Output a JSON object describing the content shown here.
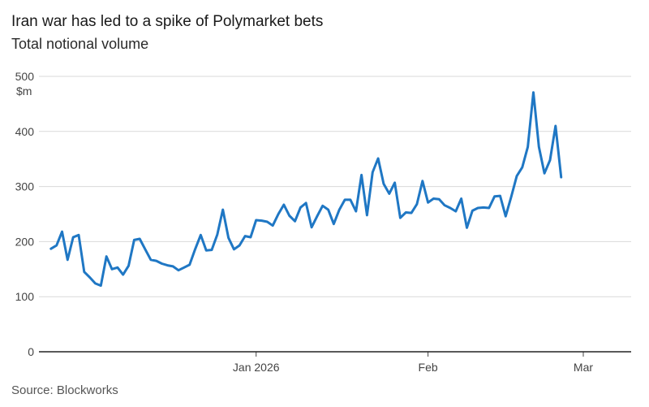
{
  "chart_data": {
    "type": "line",
    "title": "Iran war has led to a spike of Polymarket bets",
    "subtitle": "Total notional volume",
    "ylabel": "$m",
    "source": "Source: Blockworks",
    "ylim": [
      0,
      500
    ],
    "yticks": [
      0,
      100,
      200,
      300,
      400,
      500
    ],
    "xlim": [
      "2025-11-24",
      "2026-03-07"
    ],
    "xticks": [
      {
        "date": "2026-01-01",
        "label": "Jan 2026"
      },
      {
        "date": "2026-02-01",
        "label": "Feb"
      },
      {
        "date": "2026-03-01",
        "label": "Mar"
      }
    ],
    "grid": "horizontal",
    "color": "#1f77c4",
    "series": [
      {
        "points": [
          [
            "2025-11-25",
            187
          ],
          [
            "2025-11-26",
            193
          ],
          [
            "2025-11-27",
            218
          ],
          [
            "2025-11-28",
            167
          ],
          [
            "2025-11-29",
            208
          ],
          [
            "2025-11-30",
            212
          ],
          [
            "2025-12-01",
            145
          ],
          [
            "2025-12-02",
            135
          ],
          [
            "2025-12-03",
            124
          ],
          [
            "2025-12-04",
            120
          ],
          [
            "2025-12-05",
            173
          ],
          [
            "2025-12-06",
            150
          ],
          [
            "2025-12-07",
            153
          ],
          [
            "2025-12-08",
            140
          ],
          [
            "2025-12-09",
            156
          ],
          [
            "2025-12-10",
            203
          ],
          [
            "2025-12-11",
            205
          ],
          [
            "2025-12-12",
            186
          ],
          [
            "2025-12-13",
            167
          ],
          [
            "2025-12-14",
            165
          ],
          [
            "2025-12-15",
            160
          ],
          [
            "2025-12-16",
            157
          ],
          [
            "2025-12-17",
            155
          ],
          [
            "2025-12-18",
            148
          ],
          [
            "2025-12-19",
            153
          ],
          [
            "2025-12-20",
            158
          ],
          [
            "2025-12-21",
            186
          ],
          [
            "2025-12-22",
            212
          ],
          [
            "2025-12-23",
            184
          ],
          [
            "2025-12-24",
            185
          ],
          [
            "2025-12-25",
            213
          ],
          [
            "2025-12-26",
            258
          ],
          [
            "2025-12-27",
            207
          ],
          [
            "2025-12-28",
            186
          ],
          [
            "2025-12-29",
            193
          ],
          [
            "2025-12-30",
            210
          ],
          [
            "2025-12-31",
            208
          ],
          [
            "2026-01-01",
            239
          ],
          [
            "2026-01-02",
            238
          ],
          [
            "2026-01-03",
            236
          ],
          [
            "2026-01-04",
            229
          ],
          [
            "2026-01-05",
            250
          ],
          [
            "2026-01-06",
            267
          ],
          [
            "2026-01-07",
            247
          ],
          [
            "2026-01-08",
            237
          ],
          [
            "2026-01-09",
            262
          ],
          [
            "2026-01-10",
            270
          ],
          [
            "2026-01-11",
            226
          ],
          [
            "2026-01-12",
            246
          ],
          [
            "2026-01-13",
            265
          ],
          [
            "2026-01-14",
            258
          ],
          [
            "2026-01-15",
            232
          ],
          [
            "2026-01-16",
            258
          ],
          [
            "2026-01-17",
            276
          ],
          [
            "2026-01-18",
            276
          ],
          [
            "2026-01-19",
            255
          ],
          [
            "2026-01-20",
            321
          ],
          [
            "2026-01-21",
            248
          ],
          [
            "2026-01-22",
            326
          ],
          [
            "2026-01-23",
            351
          ],
          [
            "2026-01-24",
            305
          ],
          [
            "2026-01-25",
            287
          ],
          [
            "2026-01-26",
            307
          ],
          [
            "2026-01-27",
            243
          ],
          [
            "2026-01-28",
            253
          ],
          [
            "2026-01-29",
            252
          ],
          [
            "2026-01-30",
            268
          ],
          [
            "2026-01-31",
            310
          ],
          [
            "2026-02-01",
            271
          ],
          [
            "2026-02-02",
            278
          ],
          [
            "2026-02-03",
            277
          ],
          [
            "2026-02-04",
            266
          ],
          [
            "2026-02-05",
            261
          ],
          [
            "2026-02-06",
            255
          ],
          [
            "2026-02-07",
            278
          ],
          [
            "2026-02-08",
            225
          ],
          [
            "2026-02-09",
            256
          ],
          [
            "2026-02-10",
            261
          ],
          [
            "2026-02-11",
            262
          ],
          [
            "2026-02-12",
            261
          ],
          [
            "2026-02-13",
            282
          ],
          [
            "2026-02-14",
            283
          ],
          [
            "2026-02-15",
            246
          ],
          [
            "2026-02-16",
            281
          ],
          [
            "2026-02-17",
            319
          ],
          [
            "2026-02-18",
            335
          ],
          [
            "2026-02-19",
            372
          ],
          [
            "2026-02-20",
            471
          ],
          [
            "2026-02-21",
            372
          ],
          [
            "2026-02-22",
            324
          ],
          [
            "2026-02-23",
            348
          ],
          [
            "2026-02-24",
            410
          ],
          [
            "2026-02-25",
            317
          ]
        ]
      }
    ]
  }
}
